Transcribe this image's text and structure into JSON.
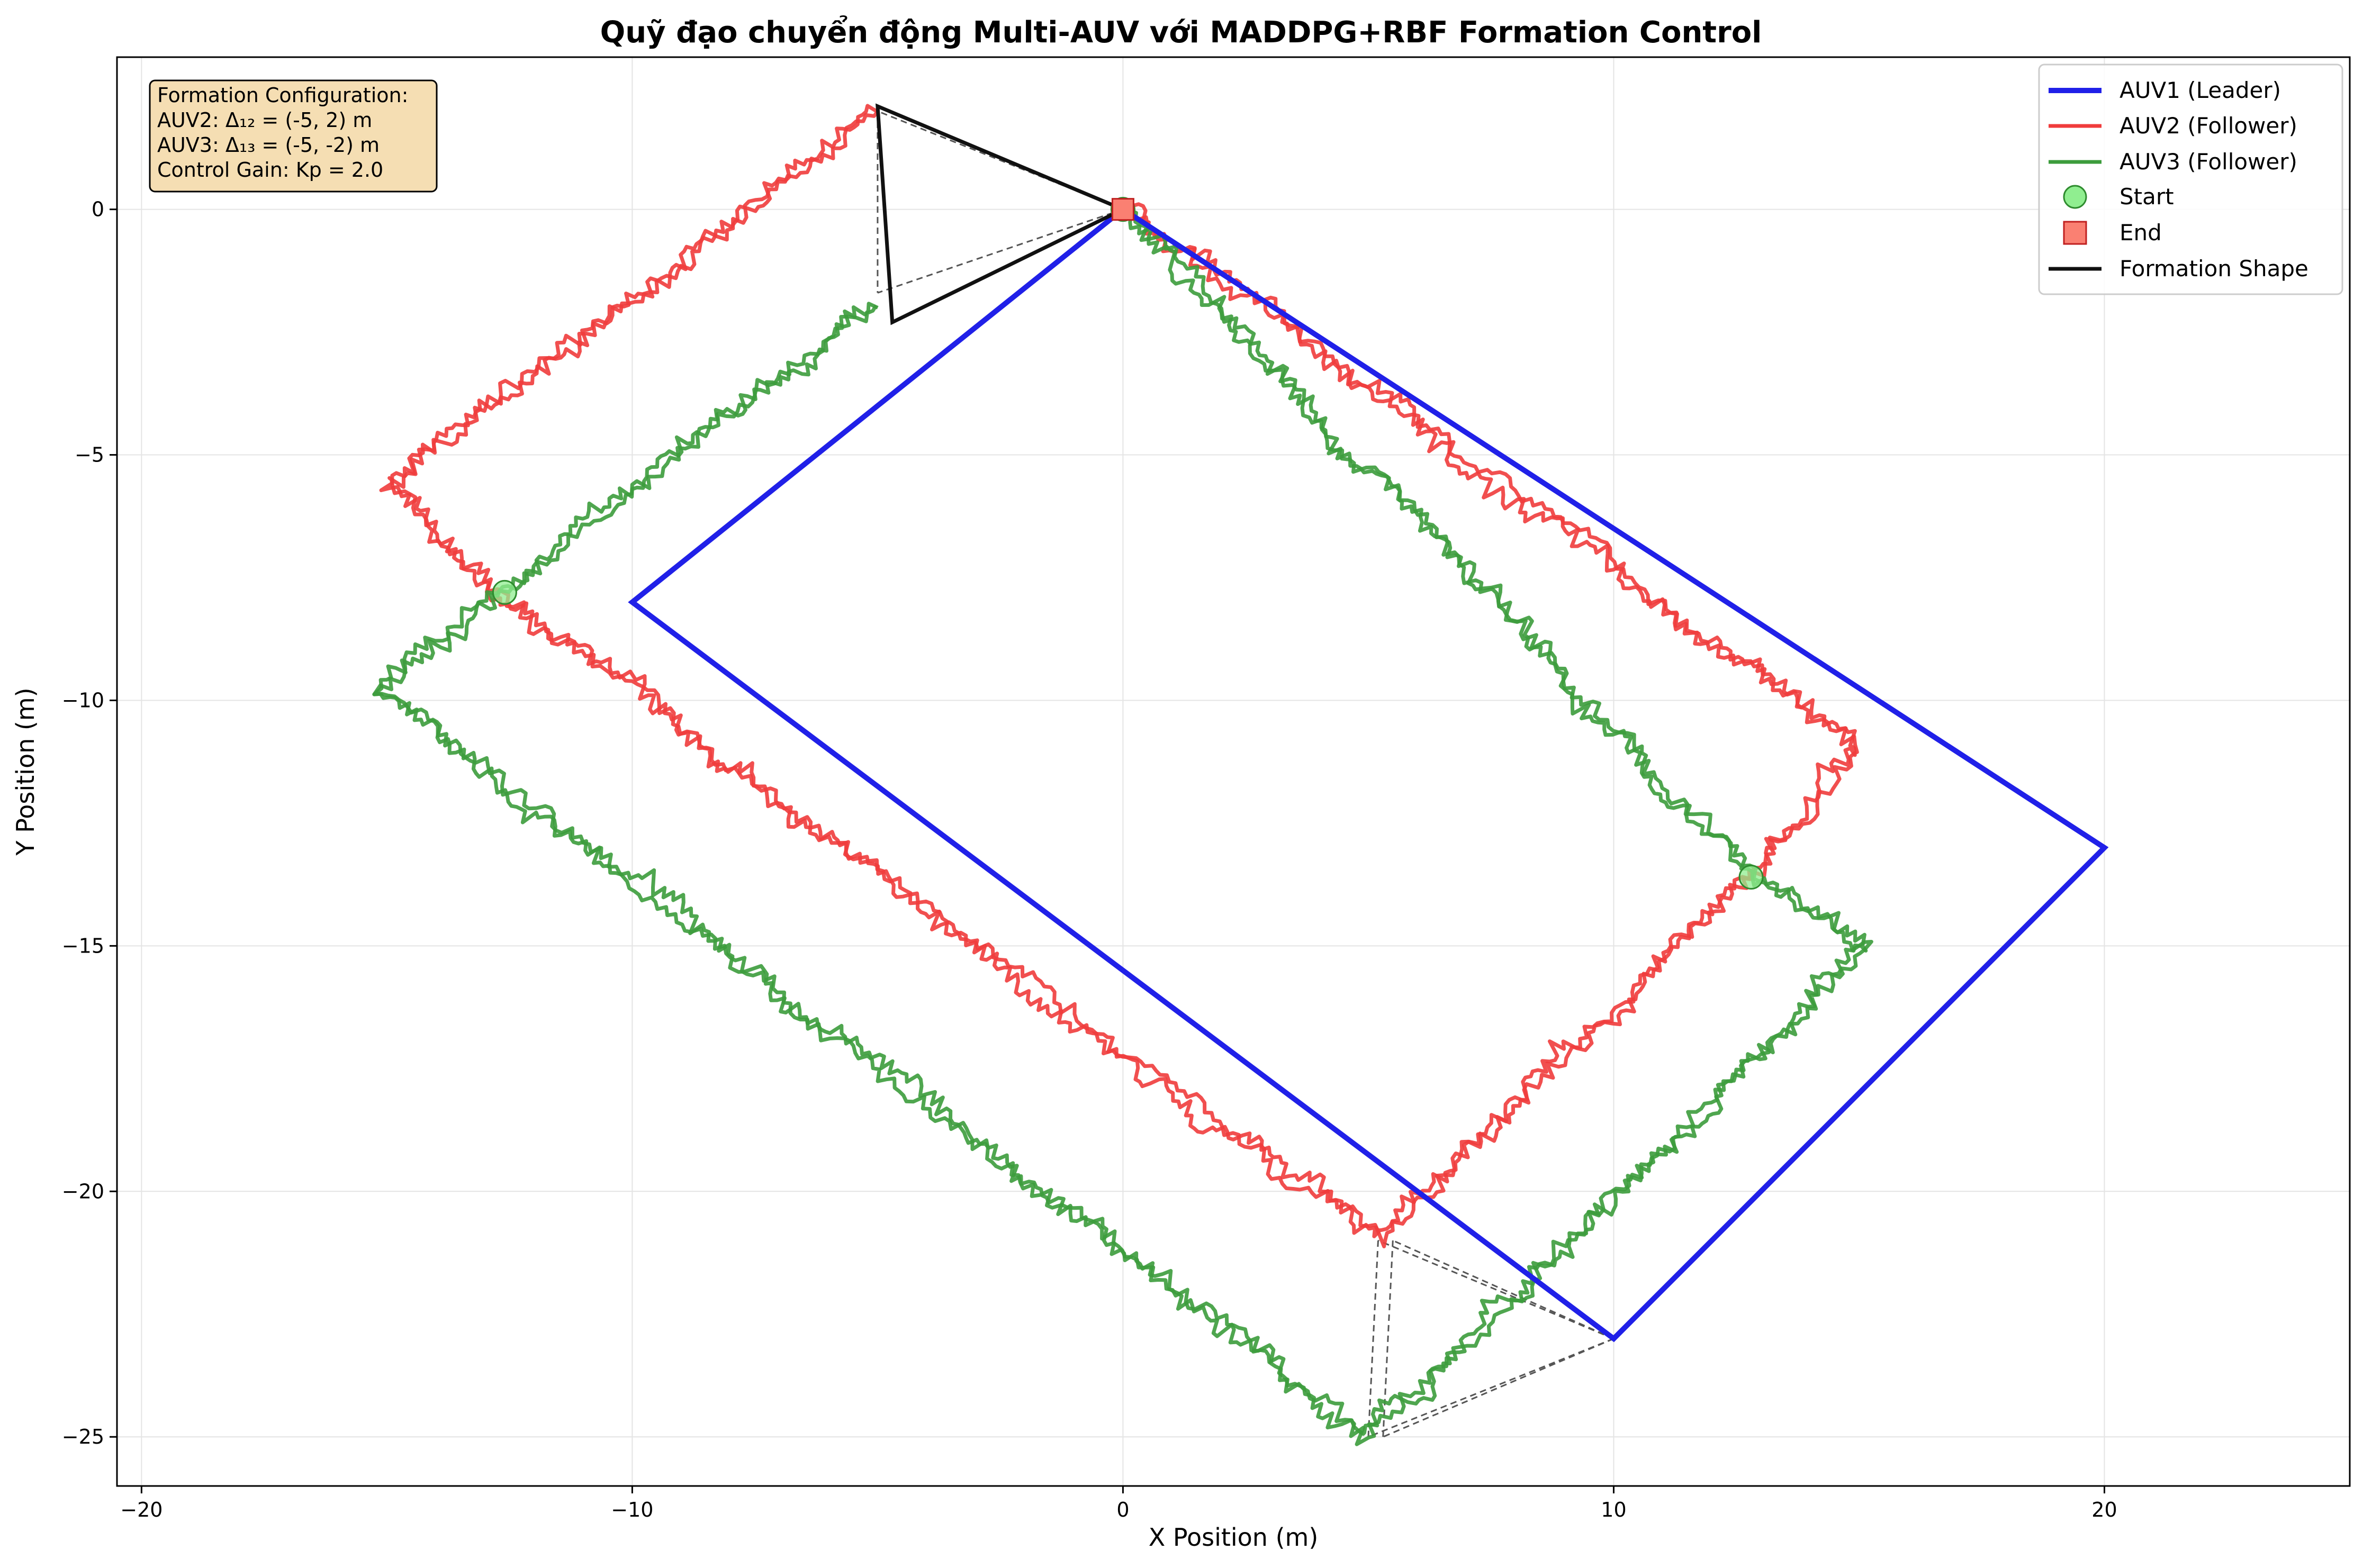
{
  "chart_data": {
    "type": "line",
    "title": "Quỹ đạo chuyển động Multi-AUV với MADDPG+RBF Formation Control",
    "xlabel": "X Position (m)",
    "ylabel": "Y Position (m)",
    "xlim": [
      -20.5,
      25
    ],
    "ylim": [
      -26,
      3.1
    ],
    "xticks": [
      -20,
      -10,
      0,
      10,
      20
    ],
    "yticks": [
      0,
      -5,
      -10,
      -15,
      -20,
      -25
    ],
    "xtick_labels": [
      "−20",
      "−10",
      "0",
      "10",
      "20"
    ],
    "ytick_labels": [
      "0",
      "−5",
      "−10",
      "−15",
      "−20",
      "−25"
    ],
    "grid": true,
    "legend_position": "top-right",
    "legend": [
      "AUV1 (Leader)",
      "AUV2 (Follower)",
      "AUV3 (Follower)",
      "Start",
      "End",
      "Formation Shape"
    ],
    "colors": {
      "auv1": "#2020e8",
      "auv2": "#f03c3c",
      "auv3": "#3c9c3c",
      "start_fill": "#90ee90",
      "start_edge": "#2e8b2e",
      "end_fill": "#fa8072",
      "end_edge": "#c02020",
      "formation": "#111111",
      "link": "#555555",
      "infobox_fill": "#f5deb3"
    },
    "info_box": {
      "lines": [
        "Formation Configuration:",
        "AUV2: Δ₁₂ = (-5, 2) m",
        "AUV3: Δ₁₃ = (-5, -2) m",
        "Control Gain: Kp = 2.0"
      ]
    },
    "series": [
      {
        "name": "AUV1 (Leader)",
        "x": [
          0,
          -10,
          10,
          20,
          0
        ],
        "y": [
          0,
          -8,
          -23,
          -13,
          0
        ]
      },
      {
        "name": "AUV2 (Follower)",
        "x": [
          -5,
          -15,
          -12.5,
          5.2,
          12.8,
          15,
          0
        ],
        "y": [
          2,
          -5.6,
          -8,
          -21,
          -13.5,
          -11,
          0
        ]
      },
      {
        "name": "AUV3 (Follower)",
        "x": [
          -5,
          -12.8,
          -15.2,
          5,
          15.2,
          12.8,
          0
        ],
        "y": [
          -2,
          -7.8,
          -9.8,
          -25,
          -15,
          -13.5,
          0
        ]
      }
    ],
    "start_points": [
      {
        "x": 0,
        "y": 0
      },
      {
        "x": -12.6,
        "y": -7.8
      },
      {
        "x": 12.8,
        "y": -13.6
      }
    ],
    "end_points": [
      {
        "x": 0,
        "y": 0
      }
    ],
    "formation_shape": {
      "x": [
        0,
        -5,
        -4.7,
        0
      ],
      "y": [
        0,
        2.1,
        -2.3,
        0
      ]
    },
    "formation_links": [
      [
        [
          0,
          0
        ],
        [
          -5,
          2
        ]
      ],
      [
        [
          0,
          0
        ],
        [
          -5,
          -1.7
        ]
      ],
      [
        [
          -5,
          2
        ],
        [
          -5,
          -1.7
        ]
      ],
      [
        [
          10,
          -23
        ],
        [
          5.2,
          -21
        ]
      ],
      [
        [
          10,
          -23
        ],
        [
          5.5,
          -21
        ]
      ],
      [
        [
          10,
          -23
        ],
        [
          5,
          -25
        ]
      ],
      [
        [
          10,
          -23
        ],
        [
          5.3,
          -25
        ]
      ],
      [
        [
          5.2,
          -21
        ],
        [
          5,
          -25
        ]
      ],
      [
        [
          5.5,
          -21
        ],
        [
          5.3,
          -25
        ]
      ]
    ]
  }
}
